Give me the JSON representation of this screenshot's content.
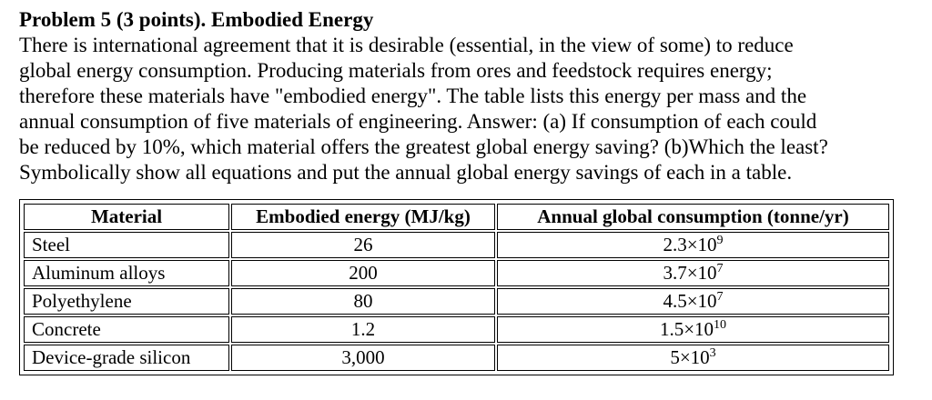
{
  "problem": {
    "title": "Problem 5 (3 points).  Embodied Energy",
    "lines": [
      "There is international agreement that it is desirable (essential, in the view of some) to reduce",
      "global energy consumption. Producing materials from ores and feedstock requires energy;",
      "therefore these materials have \"embodied energy\". The table lists this energy per mass and the",
      "annual consumption of five materials of engineering. Answer: (a) If consumption of each could",
      "be reduced by 10%, which material offers the greatest global energy saving? (b)Which the least?",
      "Symbolically show all equations and put the annual global energy savings of each in a table."
    ]
  },
  "table": {
    "headers": [
      "Material",
      "Embodied energy (MJ/kg)",
      "Annual global consumption (tonne/yr)"
    ],
    "rows": [
      {
        "material": "Steel",
        "energy": "26",
        "mantissa": "2.3×10",
        "exponent": "9"
      },
      {
        "material": "Aluminum alloys",
        "energy": "200",
        "mantissa": "3.7×10",
        "exponent": "7"
      },
      {
        "material": "Polyethylene",
        "energy": "80",
        "mantissa": "4.5×10",
        "exponent": "7"
      },
      {
        "material": "Concrete",
        "energy": "1.2",
        "mantissa": "1.5×10",
        "exponent": "10"
      },
      {
        "material": "Device-grade silicon",
        "energy": "3,000",
        "mantissa": "5×10",
        "exponent": "3"
      }
    ]
  }
}
